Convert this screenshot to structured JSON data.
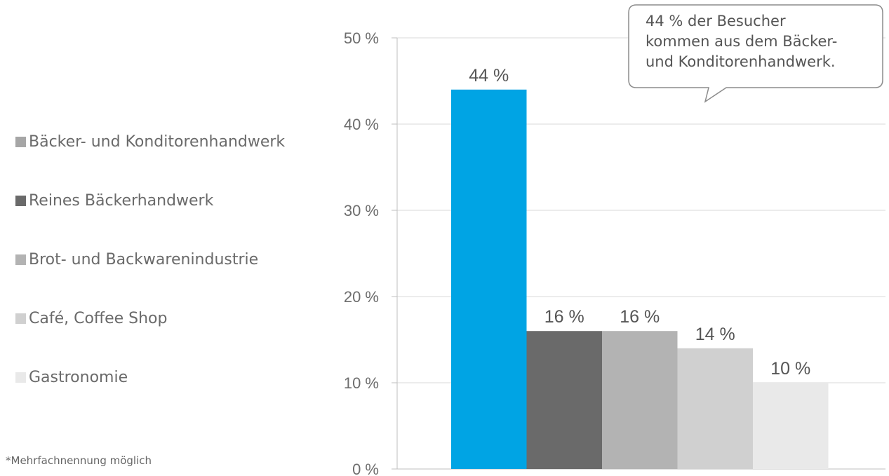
{
  "chart_data": {
    "type": "bar",
    "categories": [
      "Bäcker- und Konditorenhandwerk",
      "Reines Bäckerhandwerk",
      "Brot- und Backwarenindustrie",
      "Café, Coffee Shop",
      "Gastronomie"
    ],
    "values": [
      44,
      16,
      16,
      14,
      10
    ],
    "data_labels": [
      "44 %",
      "16 %",
      "16 %",
      "14 %",
      "10 %"
    ],
    "colors": [
      "#00a4e4",
      "#6a6a6a",
      "#b3b3b3",
      "#d0d0d0",
      "#e9e9e9"
    ],
    "ylim": [
      0,
      50
    ],
    "yticks": [
      0,
      10,
      20,
      30,
      40,
      50
    ],
    "ytick_labels": [
      "0 %",
      "10 %",
      "20 %",
      "30 %",
      "40 %",
      "50 %"
    ],
    "grid": true,
    "legend_position": "left",
    "legend": [
      {
        "label": "Bäcker- und Konditorenhandwerk",
        "color": "#a6a6a6"
      },
      {
        "label": "Reines Bäckerhandwerk",
        "color": "#6a6a6a"
      },
      {
        "label": "Brot- und Backwarenindustrie",
        "color": "#b3b3b3"
      },
      {
        "label": "Café, Coffee Shop",
        "color": "#d0d0d0"
      },
      {
        "label": "Gastronomie",
        "color": "#e9e9e9"
      }
    ],
    "annotation": [
      "44 % der Besucher",
      "kommen aus dem Bäcker-",
      "und Konditorenhandwerk."
    ],
    "footnote": "*Mehrfachnennung möglich"
  }
}
